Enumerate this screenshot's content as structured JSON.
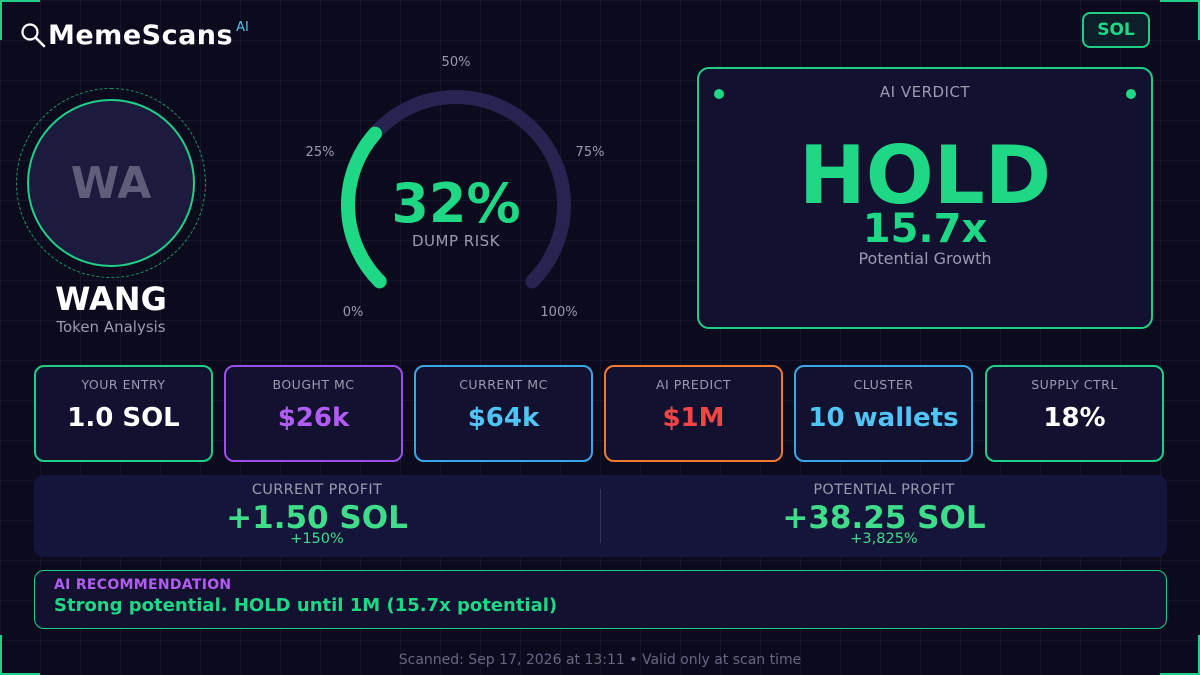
{
  "brand": {
    "name": "MemeScans",
    "badge": "AI"
  },
  "chain_button": "SOL",
  "token": {
    "initials": "WA",
    "name": "WANG",
    "subtitle": "Token Analysis"
  },
  "gauge": {
    "value_text": "32%",
    "value": 32,
    "caption": "DUMP RISK",
    "ticks": [
      "0%",
      "25%",
      "50%",
      "75%",
      "100%"
    ],
    "fill_color": "#1fd886",
    "track_color": "#272452"
  },
  "verdict": {
    "title": "AI VERDICT",
    "word": "HOLD",
    "multiplier": "15.7x",
    "subtitle": "Potential Growth"
  },
  "stats": [
    {
      "label": "YOUR ENTRY",
      "value": "1.0 SOL",
      "border": "#1fcf86",
      "color": "#ffffff"
    },
    {
      "label": "BOUGHT MC",
      "value": "$26k",
      "border": "#9b4dee",
      "color": "#b15cf5"
    },
    {
      "label": "CURRENT MC",
      "value": "$64k",
      "border": "#3aa6e8",
      "color": "#4fc4f5"
    },
    {
      "label": "AI PREDICT",
      "value": "$1M",
      "border": "#f07a30",
      "color": "#f24545"
    },
    {
      "label": "CLUSTER",
      "value": "10 wallets",
      "border": "#3aa6e8",
      "color": "#4fc4f5"
    },
    {
      "label": "SUPPLY CTRL",
      "value": "18%",
      "border": "#1fcf86",
      "color": "#ffffff"
    }
  ],
  "profit": {
    "current": {
      "label": "CURRENT PROFIT",
      "value": "+1.50 SOL",
      "pct": "+150%"
    },
    "potential": {
      "label": "POTENTIAL PROFIT",
      "value": "+38.25 SOL",
      "pct": "+3,825%"
    }
  },
  "recommendation": {
    "title": "AI RECOMMENDATION",
    "text": "Strong potential. HOLD until 1M (15.7x potential)"
  },
  "footer": "Scanned: Sep 17, 2026 at 13:11  •  Valid only at scan time"
}
